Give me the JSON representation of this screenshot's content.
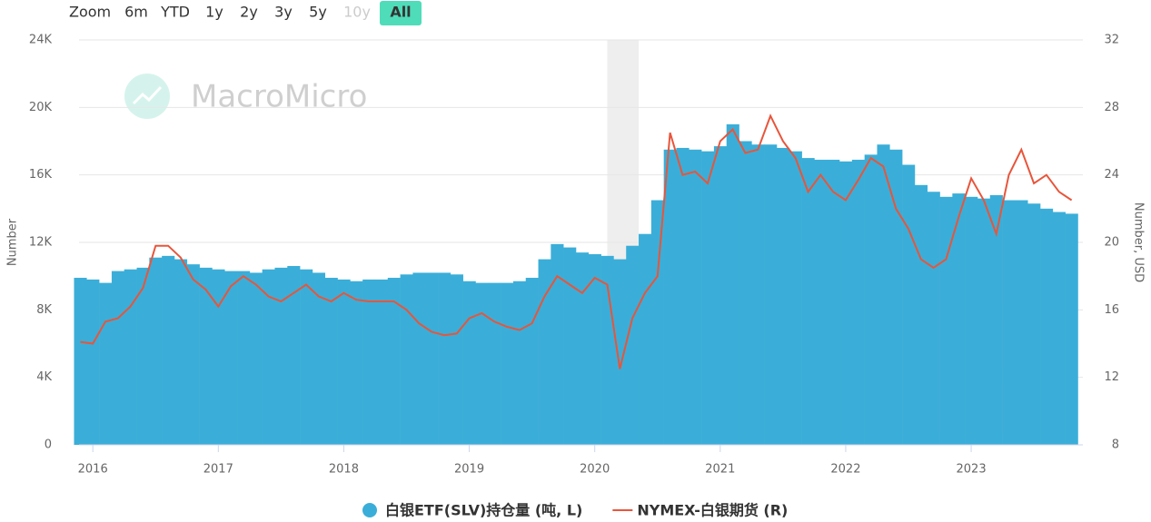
{
  "range_selector": {
    "label": "Zoom",
    "buttons": [
      "6m",
      "YTD",
      "1y",
      "2y",
      "3y",
      "5y",
      "10y",
      "All"
    ],
    "selected": 7,
    "disabled": [
      6
    ]
  },
  "chart_data": {
    "type": "bar",
    "watermark": "MacroMicro",
    "ylabel": "Number",
    "y2label": "Number, USD",
    "x": [
      2015.9,
      2016.0,
      2016.1,
      2016.2,
      2016.3,
      2016.4,
      2016.5,
      2016.6,
      2016.7,
      2016.8,
      2016.9,
      2017.0,
      2017.1,
      2017.2,
      2017.3,
      2017.4,
      2017.5,
      2017.6,
      2017.7,
      2017.8,
      2017.9,
      2018.0,
      2018.1,
      2018.2,
      2018.3,
      2018.4,
      2018.5,
      2018.6,
      2018.7,
      2018.8,
      2018.9,
      2019.0,
      2019.1,
      2019.2,
      2019.3,
      2019.4,
      2019.5,
      2019.6,
      2019.7,
      2019.8,
      2019.9,
      2020.0,
      2020.1,
      2020.2,
      2020.3,
      2020.4,
      2020.5,
      2020.6,
      2020.7,
      2020.8,
      2020.9,
      2021.0,
      2021.1,
      2021.2,
      2021.3,
      2021.4,
      2021.5,
      2021.6,
      2021.7,
      2021.8,
      2021.9,
      2022.0,
      2022.1,
      2022.2,
      2022.3,
      2022.4,
      2022.5,
      2022.6,
      2022.7,
      2022.8,
      2022.9,
      2023.0,
      2023.1,
      2023.2,
      2023.3,
      2023.4,
      2023.5,
      2023.6,
      2023.7,
      2023.8
    ],
    "series": [
      {
        "name": "白银ETF(SLV)持仓量 (吨, L)",
        "type": "column",
        "color": "#3aaed8",
        "values": [
          9900,
          9800,
          9600,
          10300,
          10400,
          10500,
          11100,
          11200,
          11000,
          10700,
          10500,
          10400,
          10300,
          10300,
          10200,
          10400,
          10500,
          10600,
          10400,
          10200,
          9900,
          9800,
          9700,
          9800,
          9800,
          9900,
          10100,
          10200,
          10200,
          10200,
          10100,
          9700,
          9600,
          9600,
          9600,
          9700,
          9900,
          11000,
          11900,
          11700,
          11400,
          11300,
          11200,
          11000,
          11800,
          12500,
          14500,
          17500,
          17600,
          17500,
          17400,
          17700,
          19000,
          18000,
          17800,
          17800,
          17600,
          17400,
          17000,
          16900,
          16900,
          16800,
          16900,
          17200,
          17800,
          17500,
          16600,
          15400,
          15000,
          14700,
          14900,
          14700,
          14600,
          14800,
          14500,
          14500,
          14300,
          14000,
          13800,
          13700
        ]
      },
      {
        "name": "NYMEX-白银期货 (R)",
        "type": "line",
        "axis": "y2",
        "color": "#e8553b",
        "values": [
          14.1,
          14.0,
          15.3,
          15.5,
          16.2,
          17.3,
          19.8,
          19.8,
          19.1,
          17.8,
          17.2,
          16.2,
          17.4,
          18.0,
          17.5,
          16.8,
          16.5,
          17.0,
          17.5,
          16.8,
          16.5,
          17.0,
          16.6,
          16.5,
          16.5,
          16.5,
          16.0,
          15.2,
          14.7,
          14.5,
          14.6,
          15.5,
          15.8,
          15.3,
          15.0,
          14.8,
          15.2,
          16.8,
          18.0,
          17.5,
          17.0,
          17.9,
          17.5,
          12.5,
          15.5,
          17.0,
          18.0,
          26.5,
          24.0,
          24.2,
          23.5,
          26.0,
          26.7,
          25.3,
          25.5,
          27.5,
          26.0,
          25.0,
          23.0,
          24.0,
          23.0,
          22.5,
          23.7,
          25.0,
          24.5,
          22.0,
          20.8,
          19.0,
          18.5,
          19.0,
          21.5,
          23.8,
          22.5,
          20.5,
          24.0,
          25.5,
          23.5,
          24.0,
          23.0,
          22.5
        ]
      }
    ],
    "shaded_band": [
      2020.1,
      2020.35
    ],
    "xlim": [
      2015.89,
      2023.89
    ],
    "xticks": [
      2016,
      2017,
      2018,
      2019,
      2020,
      2021,
      2022,
      2023
    ],
    "ylim": [
      0,
      24000
    ],
    "yticks": [
      0,
      {
        "value": 4000,
        "label": "4K"
      },
      {
        "value": 8000,
        "label": "8K"
      },
      {
        "value": 12000,
        "label": "12K"
      },
      {
        "value": 16000,
        "label": "16K"
      },
      {
        "value": 20000,
        "label": "20K"
      },
      {
        "value": 24000,
        "label": "24K"
      }
    ],
    "y2lim": [
      8,
      32
    ],
    "y2ticks": [
      8,
      12,
      16,
      20,
      24,
      28,
      32
    ],
    "grid": true,
    "legend": "bottom"
  }
}
